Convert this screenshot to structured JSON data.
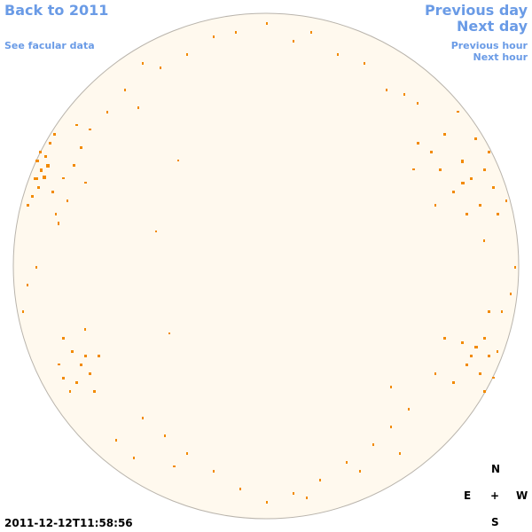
{
  "links": {
    "back": "Back to 2011",
    "facular": "See facular data",
    "previous_day": "Previous day",
    "next_day": "Next day",
    "previous_hour": "Previous hour",
    "next_hour": "Next hour"
  },
  "timestamp": "2011-12-12T11:58:56",
  "compass": {
    "north": "N",
    "east": "E",
    "center": "+",
    "west": "W",
    "south": "S"
  }
}
